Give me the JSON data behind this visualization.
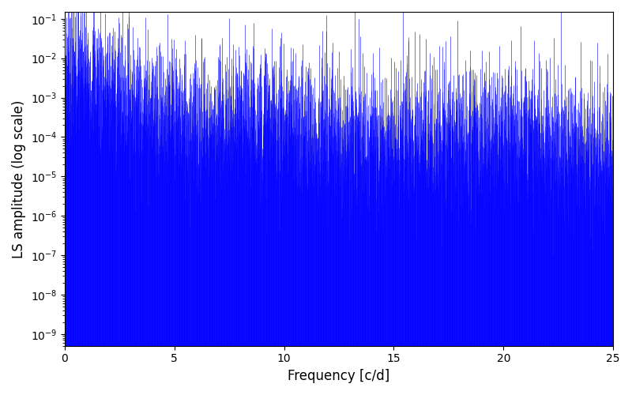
{
  "xlabel": "Frequency [c/d]",
  "ylabel": "LS amplitude (log scale)",
  "xmin": 0,
  "xmax": 25,
  "ymin": 5e-10,
  "ymax": 0.15,
  "line_color": "blue",
  "background_color": "#ffffff",
  "figsize": [
    8.0,
    5.0
  ],
  "dpi": 100,
  "n_points": 3000,
  "seed": 7
}
